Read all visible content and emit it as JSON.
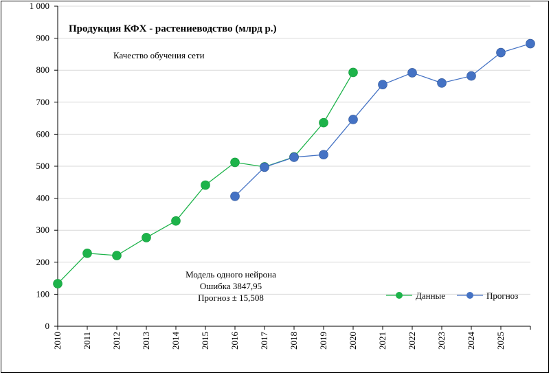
{
  "chart_data": {
    "type": "line",
    "title": "Продукция КФХ - растениеводство (млрд р.)",
    "subtitle": "Качество обучения сети",
    "annotation": [
      "Модель одного нейрона",
      "Ошибка 3847,95",
      "Прогноз ± 15,508"
    ],
    "x": [
      2010,
      2011,
      2012,
      2013,
      2014,
      2015,
      2016,
      2017,
      2018,
      2019,
      2020,
      2021,
      2022,
      2023,
      2024,
      2025,
      2026
    ],
    "x_tick_labels": [
      "2010",
      "2011",
      "2012",
      "2013",
      "2014",
      "2015",
      "2016",
      "2017",
      "2018",
      "2019",
      "2020",
      "2021",
      "2022",
      "2023",
      "2024",
      "2025"
    ],
    "y_tick_labels": [
      "0",
      "100",
      "200",
      "300",
      "400",
      "500",
      "600",
      "700",
      "800",
      "900",
      "1 000"
    ],
    "ylim": [
      0,
      1000
    ],
    "grid": true,
    "legend_position": "bottom-right",
    "series": [
      {
        "name": "Данные",
        "color": "#1db34a",
        "x": [
          2010,
          2011,
          2012,
          2013,
          2014,
          2015,
          2016,
          2017,
          2018,
          2019,
          2020
        ],
        "values": [
          133,
          228,
          221,
          277,
          329,
          441,
          512,
          498,
          529,
          636,
          793
        ]
      },
      {
        "name": "Прогноз",
        "color": "#4472c4",
        "x": [
          2016,
          2017,
          2018,
          2019,
          2020,
          2021,
          2022,
          2023,
          2024,
          2025,
          2026
        ],
        "values": [
          406,
          497,
          528,
          536,
          646,
          755,
          792,
          760,
          782,
          855,
          883
        ]
      }
    ]
  }
}
